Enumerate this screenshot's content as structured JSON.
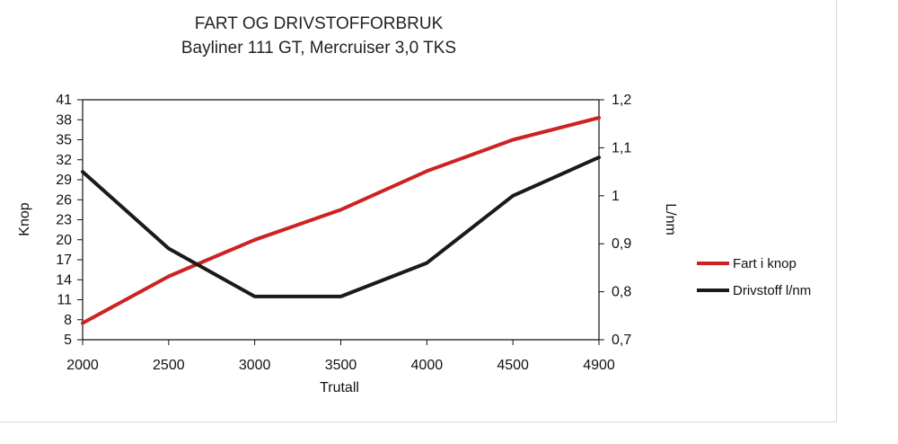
{
  "chart_data": {
    "type": "line",
    "title": "FART OG DRIVSTOFFORBRUK",
    "subtitle": "Bayliner 111 GT, Mercruiser 3,0 TKS",
    "xlabel": "Trutall",
    "ylabel": "Knop",
    "y2label": "L/nm",
    "categories": [
      "2000",
      "2500",
      "3000",
      "3500",
      "4000",
      "4500",
      "4900"
    ],
    "left_ticks": [
      "41",
      "38",
      "35",
      "32",
      "29",
      "26",
      "23",
      "20",
      "17",
      "14",
      "11",
      "8",
      "5"
    ],
    "right_ticks": [
      "1,2",
      "1,1",
      "1",
      "0,9",
      "0,8",
      "0,7"
    ],
    "ylim": [
      5,
      41
    ],
    "y2lim": [
      0.7,
      1.2
    ],
    "legend_position": "right",
    "grid": false,
    "series": [
      {
        "name": "Fart i knop",
        "axis": "left",
        "color": "#cc2222",
        "values": [
          7.5,
          14.5,
          20,
          24.5,
          30.3,
          35,
          38.3
        ]
      },
      {
        "name": "Drivstoff l/nm",
        "axis": "right",
        "color": "#1a1a1a",
        "values": [
          1.05,
          0.89,
          0.79,
          0.79,
          0.86,
          1.0,
          1.08
        ]
      }
    ]
  }
}
